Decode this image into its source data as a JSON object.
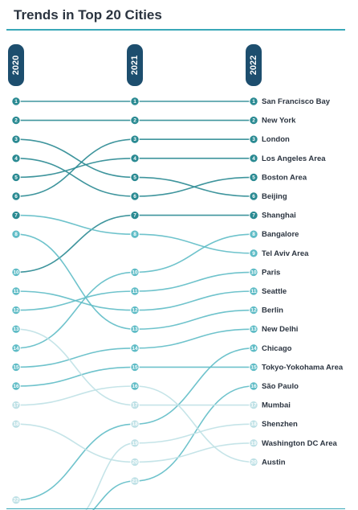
{
  "title": "Trends in Top 20 Cities",
  "chart_data": {
    "type": "bump",
    "years": [
      "2020",
      "2021",
      "2022"
    ],
    "rank_max": 22,
    "colors": {
      "year_pill": "#1d4e6e",
      "rank_dark": "#2a8a92",
      "rank_mid": "#5fbcc6",
      "rank_light": "#bfe1e6"
    },
    "series": [
      {
        "name": "San Francisco Bay",
        "ranks": [
          1,
          1,
          1
        ]
      },
      {
        "name": "New York",
        "ranks": [
          2,
          2,
          2
        ]
      },
      {
        "name": "London",
        "ranks": [
          6,
          3,
          3
        ]
      },
      {
        "name": "Los Angeles Area",
        "ranks": [
          5,
          4,
          4
        ]
      },
      {
        "name": "Boston Area",
        "ranks": [
          4,
          6,
          5
        ]
      },
      {
        "name": "Beijing",
        "ranks": [
          3,
          5,
          6
        ]
      },
      {
        "name": "Shanghai",
        "ranks": [
          10,
          7,
          7
        ]
      },
      {
        "name": "Bangalore",
        "ranks": [
          14,
          10,
          8
        ]
      },
      {
        "name": "Tel Aviv Area",
        "ranks": [
          7,
          8,
          9
        ]
      },
      {
        "name": "Paris",
        "ranks": [
          12,
          11,
          10
        ]
      },
      {
        "name": "Seattle",
        "ranks": [
          11,
          12,
          11
        ]
      },
      {
        "name": "Berlin",
        "ranks": [
          8,
          13,
          12
        ]
      },
      {
        "name": "New Delhi",
        "ranks": [
          15,
          14,
          13
        ]
      },
      {
        "name": "Chicago",
        "ranks": [
          22,
          18,
          14
        ]
      },
      {
        "name": "Tokyo-Yokohama Area",
        "ranks": [
          16,
          15,
          15
        ]
      },
      {
        "name": "São Paulo",
        "ranks": [
          null,
          21,
          16
        ]
      },
      {
        "name": "Mumbai",
        "ranks": [
          13,
          17,
          17
        ]
      },
      {
        "name": "Shenzhen",
        "ranks": [
          null,
          19,
          18
        ]
      },
      {
        "name": "Washington DC Area",
        "ranks": [
          18,
          20,
          19
        ]
      },
      {
        "name": "Austin",
        "ranks": [
          17,
          16,
          20
        ]
      }
    ]
  }
}
